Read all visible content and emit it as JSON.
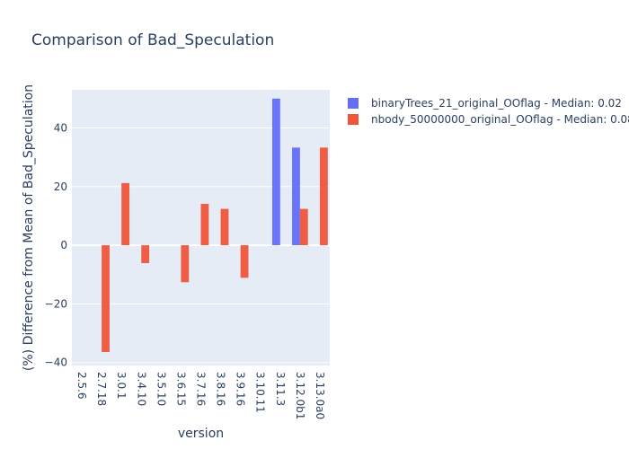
{
  "chart_data": {
    "type": "bar",
    "title": "Comparison of Bad_Speculation",
    "xlabel": "version",
    "ylabel": "(%) Difference from Mean of Bad_Speculation",
    "categories": [
      "2.5.6",
      "2.7.18",
      "3.0.1",
      "3.4.10",
      "3.5.10",
      "3.6.15",
      "3.7.16",
      "3.8.16",
      "3.9.16",
      "3.10.11",
      "3.11.3",
      "3.12.0b1",
      "3.13.0a0"
    ],
    "ylim": [
      -41,
      53
    ],
    "yticks": [
      -40,
      -20,
      0,
      20,
      40
    ],
    "grid": true,
    "legend_position": "top-right",
    "series": [
      {
        "name": "binaryTrees_21_original_OOflag - Median: 0.02",
        "color": "#636efa",
        "values": [
          null,
          null,
          null,
          null,
          null,
          null,
          null,
          null,
          null,
          null,
          50,
          33.3,
          null
        ]
      },
      {
        "name": "nbody_50000000_original_OOflag - Median: 0.08",
        "color": "#ef553b",
        "values": [
          null,
          -36.4,
          21.2,
          -6.1,
          null,
          -12.6,
          14.1,
          12.4,
          -11.1,
          null,
          null,
          12.4,
          33.3
        ]
      }
    ]
  }
}
